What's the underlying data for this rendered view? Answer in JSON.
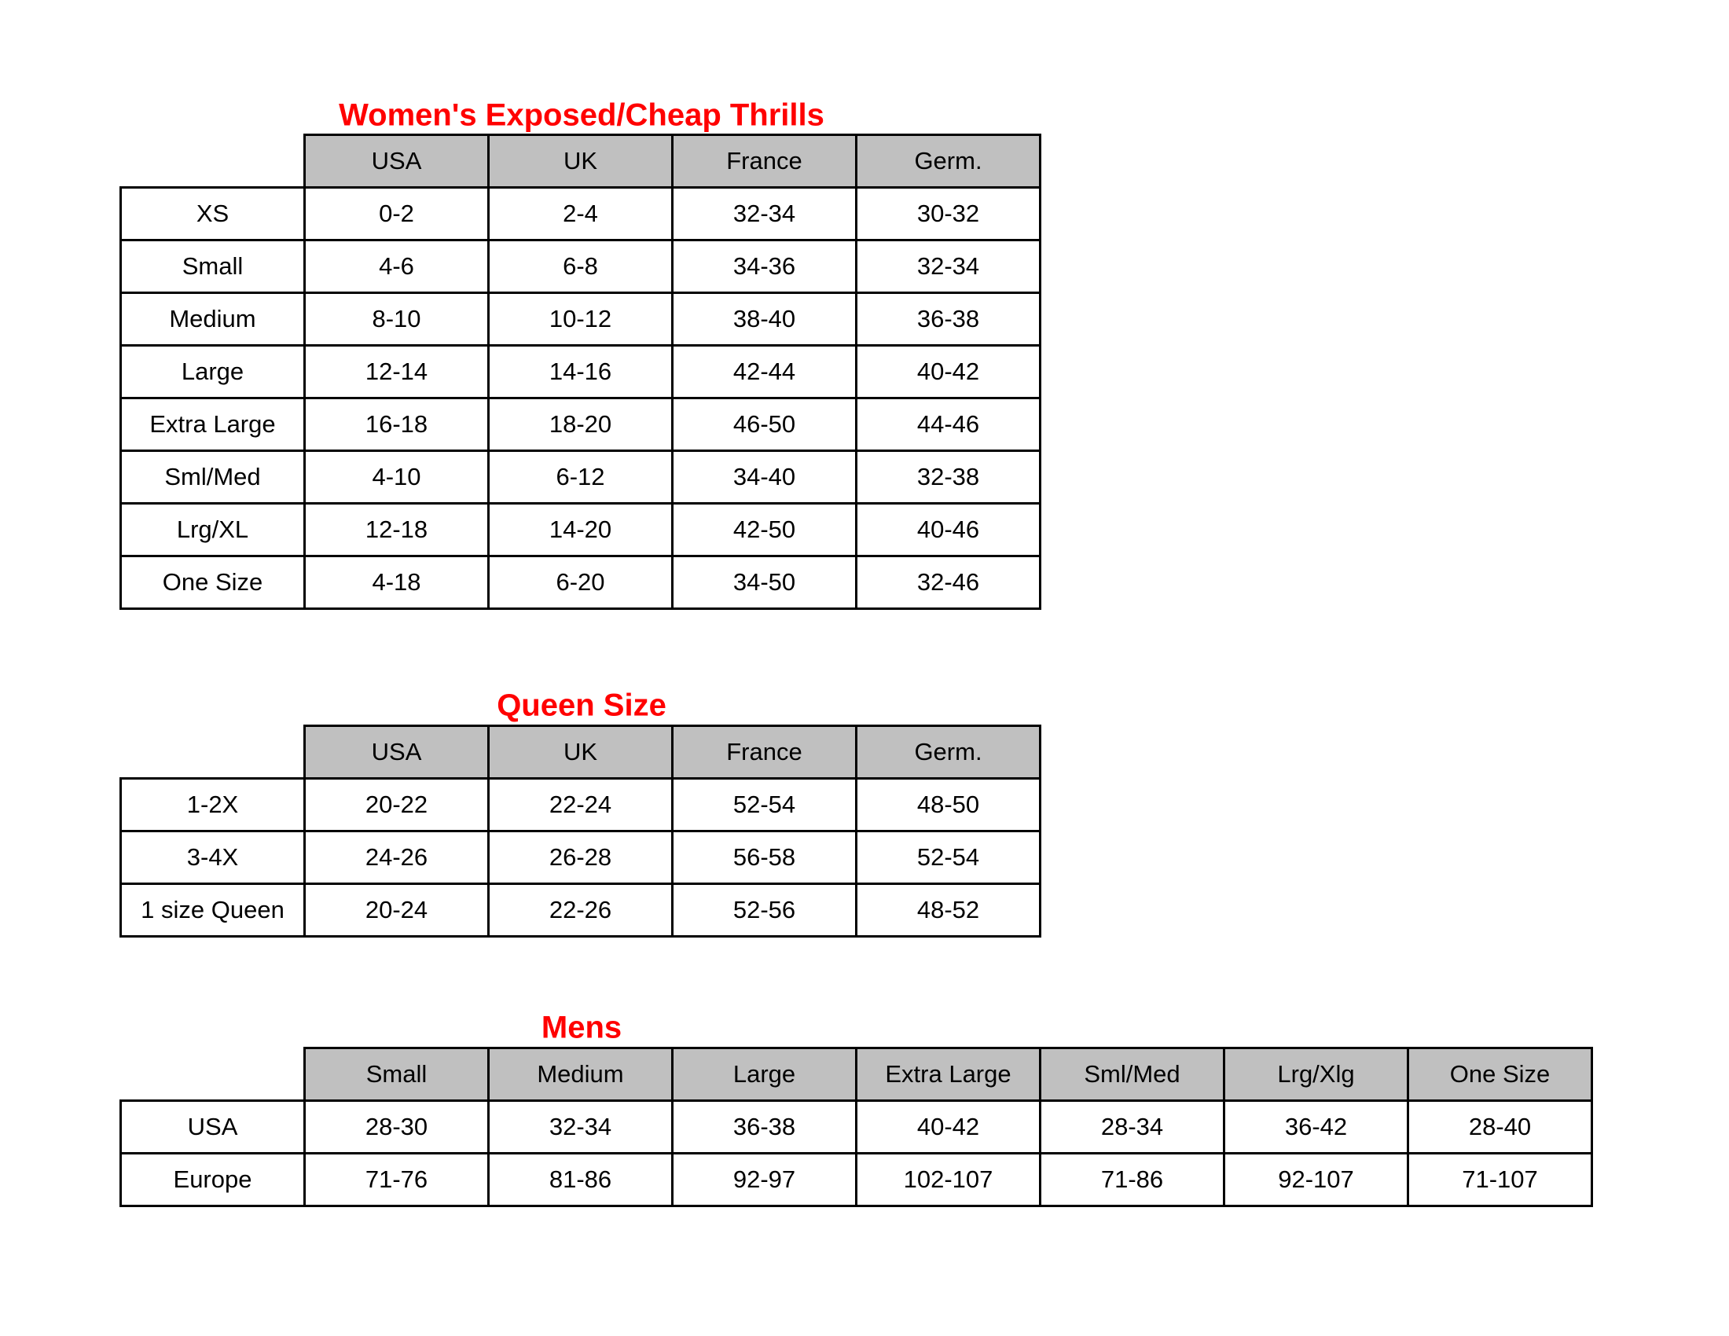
{
  "tables": [
    {
      "title": "Women's Exposed/Cheap Thrills",
      "columns": [
        "USA",
        "UK",
        "France",
        "Germ."
      ],
      "rows": [
        {
          "label": "XS",
          "values": [
            "0-2",
            "2-4",
            "32-34",
            "30-32"
          ]
        },
        {
          "label": "Small",
          "values": [
            "4-6",
            "6-8",
            "34-36",
            "32-34"
          ]
        },
        {
          "label": "Medium",
          "values": [
            "8-10",
            "10-12",
            "38-40",
            "36-38"
          ]
        },
        {
          "label": "Large",
          "values": [
            "12-14",
            "14-16",
            "42-44",
            "40-42"
          ]
        },
        {
          "label": "Extra Large",
          "values": [
            "16-18",
            "18-20",
            "46-50",
            "44-46"
          ]
        },
        {
          "label": "Sml/Med",
          "values": [
            "4-10",
            "6-12",
            "34-40",
            "32-38"
          ]
        },
        {
          "label": "Lrg/XL",
          "values": [
            "12-18",
            "14-20",
            "42-50",
            "40-46"
          ]
        },
        {
          "label": "One Size",
          "values": [
            "4-18",
            "6-20",
            "34-50",
            "32-46"
          ]
        }
      ]
    },
    {
      "title": "Queen Size",
      "columns": [
        "USA",
        "UK",
        "France",
        "Germ."
      ],
      "rows": [
        {
          "label": "1-2X",
          "values": [
            "20-22",
            "22-24",
            "52-54",
            "48-50"
          ]
        },
        {
          "label": "3-4X",
          "values": [
            "24-26",
            "26-28",
            "56-58",
            "52-54"
          ]
        },
        {
          "label": "1 size Queen",
          "values": [
            "20-24",
            "22-26",
            "52-56",
            "48-52"
          ]
        }
      ]
    },
    {
      "title": "Mens",
      "columns": [
        "Small",
        "Medium",
        "Large",
        "Extra Large",
        "Sml/Med",
        "Lrg/Xlg",
        "One Size"
      ],
      "rows": [
        {
          "label": "USA",
          "values": [
            "28-30",
            "32-34",
            "36-38",
            "40-42",
            "28-34",
            "36-42",
            "28-40"
          ]
        },
        {
          "label": "Europe",
          "values": [
            "71-76",
            "81-86",
            "92-97",
            "102-107",
            "71-86",
            "92-107",
            "71-107"
          ]
        }
      ]
    }
  ],
  "colors": {
    "title": "#ff0000",
    "header_fill": "#c0c0c0",
    "border": "#000000"
  }
}
